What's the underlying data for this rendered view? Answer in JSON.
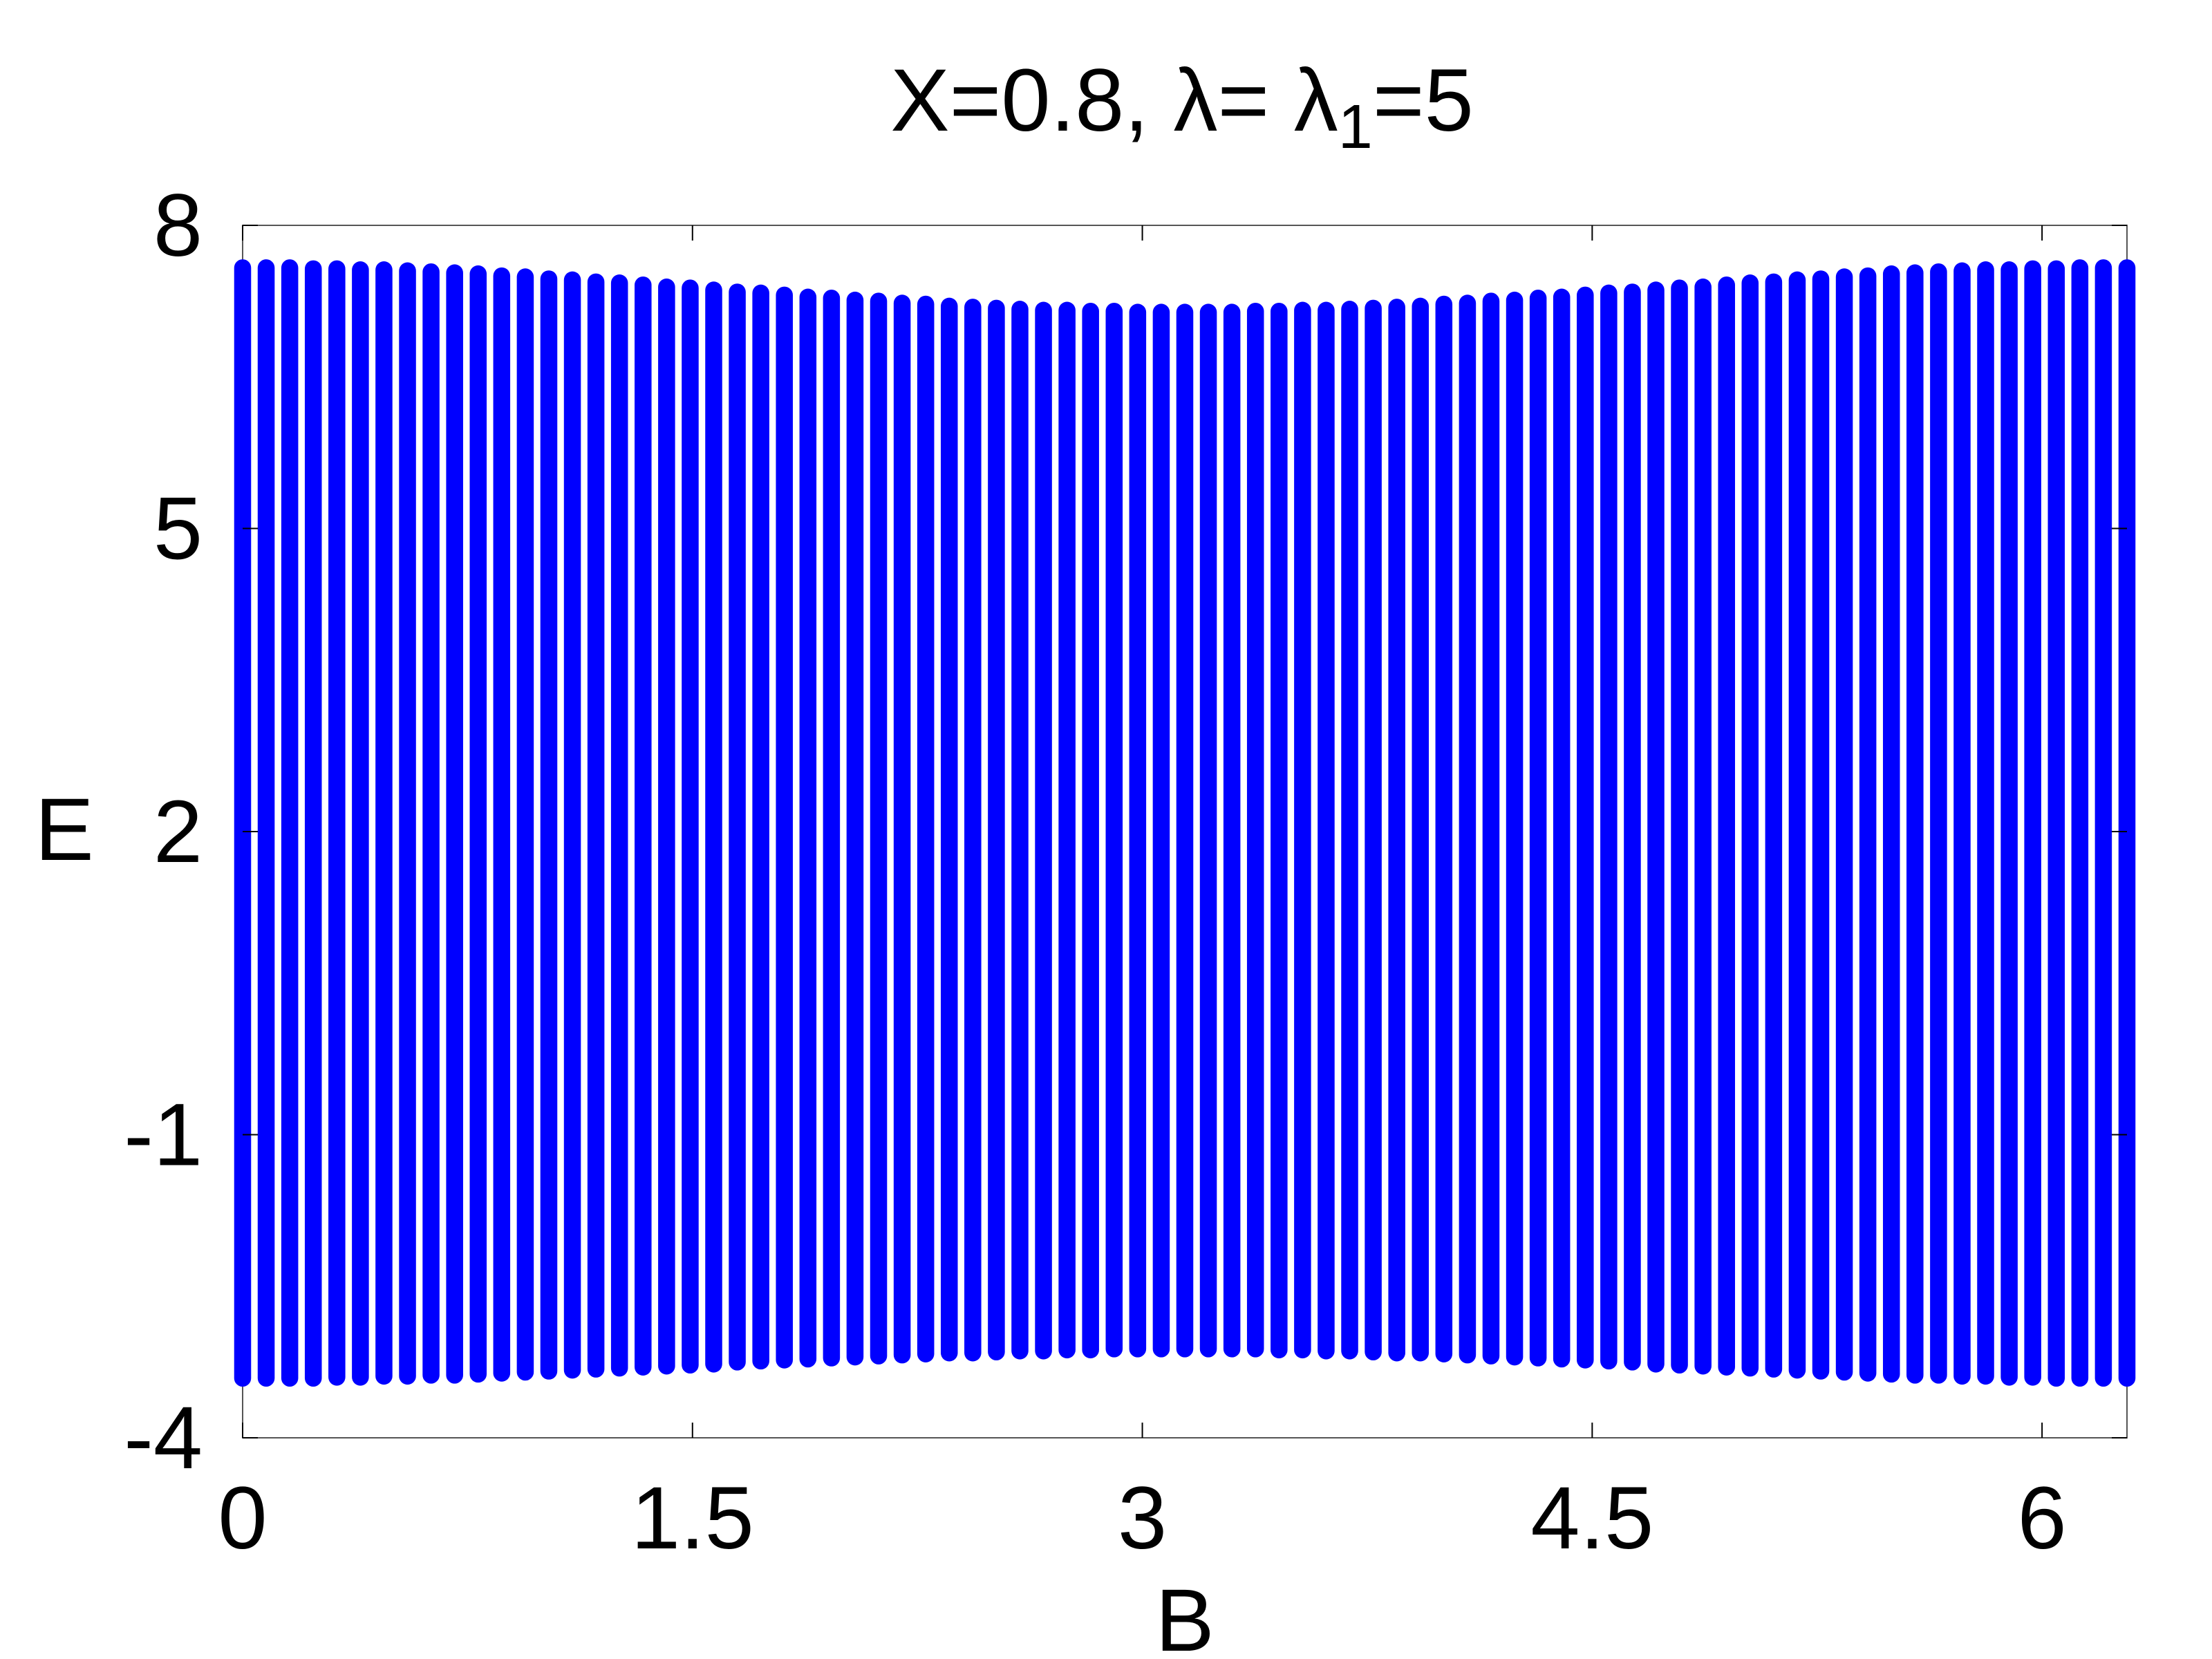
{
  "chart_data": {
    "type": "range",
    "title": "X=0.8, λ= λ",
    "title_subscript": "1",
    "title_suffix": "=5",
    "x_label": "B",
    "y_label": "E",
    "color": "#0000ff",
    "xlim": [
      0,
      6.2832
    ],
    "xticks": [
      0,
      1.5,
      3,
      4.5,
      6
    ],
    "ylim": [
      -4,
      8
    ],
    "yticks": [
      -4,
      -1,
      2,
      5,
      8
    ],
    "x": [
      0,
      0.0785,
      0.1571,
      0.2356,
      0.3142,
      0.3927,
      0.4712,
      0.5498,
      0.6283,
      0.7069,
      0.7854,
      0.8639,
      0.9425,
      1.021,
      1.0996,
      1.1781,
      1.2566,
      1.3352,
      1.4137,
      1.4923,
      1.5708,
      1.6493,
      1.7279,
      1.8064,
      1.885,
      1.9635,
      2.042,
      2.1206,
      2.1991,
      2.2777,
      2.3562,
      2.4347,
      2.5133,
      2.5918,
      2.6704,
      2.7489,
      2.8274,
      2.906,
      2.9845,
      3.0631,
      3.1416,
      3.2201,
      3.2987,
      3.3772,
      3.4558,
      3.5343,
      3.6128,
      3.6914,
      3.7699,
      3.8485,
      3.927,
      4.0055,
      4.0841,
      4.1626,
      4.2412,
      4.3197,
      4.3982,
      4.4768,
      4.5553,
      4.6339,
      4.7124,
      4.7909,
      4.8695,
      4.948,
      5.0265,
      5.1051,
      5.1836,
      5.2622,
      5.3407,
      5.4192,
      5.4978,
      5.5763,
      5.6549,
      5.7334,
      5.8119,
      5.8905,
      5.969,
      6.0476,
      6.1261,
      6.2046,
      6.2832
    ],
    "high": [
      7.58,
      7.58,
      7.58,
      7.57,
      7.57,
      7.56,
      7.56,
      7.55,
      7.54,
      7.53,
      7.52,
      7.5,
      7.49,
      7.47,
      7.46,
      7.44,
      7.43,
      7.41,
      7.39,
      7.38,
      7.36,
      7.34,
      7.33,
      7.31,
      7.29,
      7.28,
      7.26,
      7.25,
      7.23,
      7.22,
      7.2,
      7.19,
      7.18,
      7.17,
      7.16,
      7.16,
      7.15,
      7.15,
      7.14,
      7.14,
      7.14,
      7.14,
      7.14,
      7.15,
      7.15,
      7.16,
      7.16,
      7.17,
      7.18,
      7.19,
      7.2,
      7.22,
      7.23,
      7.25,
      7.26,
      7.28,
      7.29,
      7.31,
      7.33,
      7.34,
      7.36,
      7.38,
      7.39,
      7.41,
      7.43,
      7.44,
      7.46,
      7.47,
      7.49,
      7.5,
      7.52,
      7.53,
      7.54,
      7.55,
      7.56,
      7.56,
      7.57,
      7.57,
      7.58,
      7.58,
      7.58
    ],
    "low": [
      -3.41,
      -3.41,
      -3.41,
      -3.41,
      -3.4,
      -3.4,
      -3.39,
      -3.39,
      -3.38,
      -3.38,
      -3.37,
      -3.36,
      -3.35,
      -3.34,
      -3.33,
      -3.32,
      -3.31,
      -3.3,
      -3.29,
      -3.28,
      -3.27,
      -3.25,
      -3.24,
      -3.23,
      -3.22,
      -3.21,
      -3.2,
      -3.19,
      -3.18,
      -3.17,
      -3.16,
      -3.16,
      -3.15,
      -3.14,
      -3.14,
      -3.13,
      -3.13,
      -3.12,
      -3.12,
      -3.12,
      -3.12,
      -3.12,
      -3.12,
      -3.12,
      -3.13,
      -3.13,
      -3.14,
      -3.14,
      -3.15,
      -3.16,
      -3.16,
      -3.17,
      -3.18,
      -3.19,
      -3.2,
      -3.21,
      -3.22,
      -3.23,
      -3.24,
      -3.25,
      -3.27,
      -3.28,
      -3.29,
      -3.3,
      -3.31,
      -3.32,
      -3.33,
      -3.34,
      -3.35,
      -3.36,
      -3.37,
      -3.38,
      -3.38,
      -3.39,
      -3.39,
      -3.4,
      -3.4,
      -3.41,
      -3.41,
      -3.41,
      -3.41
    ]
  }
}
